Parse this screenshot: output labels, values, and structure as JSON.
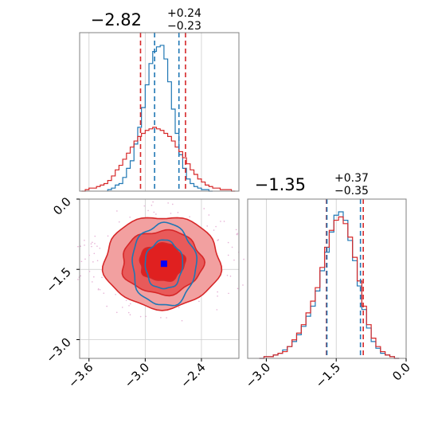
{
  "chart_data": [
    {
      "type": "histogram",
      "panel": "marginal-x",
      "title": {
        "median": "−2.82",
        "plus": "+0.24",
        "minus": "−0.23"
      },
      "xlim": [
        -3.7,
        -2.0
      ],
      "grid": true,
      "series": [
        {
          "name": "",
          "color": "#1f77b4",
          "x": [
            -3.38,
            -3.34,
            -3.3,
            -3.26,
            -3.22,
            -3.18,
            -3.14,
            -3.1,
            -3.06,
            -3.02,
            -2.98,
            -2.94,
            -2.9,
            -2.86,
            -2.82,
            -2.78,
            -2.74,
            -2.7,
            -2.66,
            -2.62,
            -2.58,
            -2.54,
            -2.5,
            -2.46,
            -2.42,
            -2.38,
            -2.34,
            -2.3
          ],
          "density": [
            0.01,
            0.02,
            0.04,
            0.05,
            0.09,
            0.15,
            0.2,
            0.31,
            0.42,
            0.55,
            0.7,
            0.84,
            0.92,
            0.95,
            0.96,
            0.87,
            0.72,
            0.54,
            0.38,
            0.24,
            0.15,
            0.08,
            0.05,
            0.03,
            0.02,
            0.01,
            0.01,
            0.0
          ]
        },
        {
          "name": "",
          "color": "#d62728",
          "x": [
            -3.66,
            -3.62,
            -3.58,
            -3.54,
            -3.5,
            -3.46,
            -3.42,
            -3.38,
            -3.34,
            -3.3,
            -3.26,
            -3.22,
            -3.18,
            -3.14,
            -3.1,
            -3.06,
            -3.02,
            -2.98,
            -2.94,
            -2.9,
            -2.86,
            -2.82,
            -2.78,
            -2.74,
            -2.7,
            -2.66,
            -2.62,
            -2.58,
            -2.54,
            -2.5,
            -2.46,
            -2.42,
            -2.38,
            -2.34,
            -2.3,
            -2.26,
            -2.22,
            -2.18,
            -2.14,
            -2.1,
            -2.06
          ],
          "density": [
            0.0,
            0.01,
            0.02,
            0.02,
            0.03,
            0.04,
            0.05,
            0.07,
            0.1,
            0.14,
            0.17,
            0.21,
            0.25,
            0.29,
            0.33,
            0.36,
            0.38,
            0.4,
            0.41,
            0.42,
            0.41,
            0.4,
            0.38,
            0.36,
            0.33,
            0.29,
            0.26,
            0.22,
            0.18,
            0.14,
            0.11,
            0.08,
            0.06,
            0.04,
            0.03,
            0.02,
            0.02,
            0.01,
            0.01,
            0.01,
            0.0
          ]
        }
      ],
      "quantile_lines": [
        {
          "x": -3.05,
          "color": "#d62728"
        },
        {
          "x": -2.9,
          "color": "#1f77b4"
        },
        {
          "x": -2.64,
          "color": "#1f77b4"
        },
        {
          "x": -2.57,
          "color": "#d62728"
        }
      ]
    },
    {
      "type": "histogram",
      "panel": "marginal-y",
      "title": {
        "median": "−1.35",
        "plus": "+0.37",
        "minus": "−0.35"
      },
      "xlim": [
        -3.4,
        0.0
      ],
      "xticks": [
        "−3.0",
        "−1.5",
        "0.0"
      ],
      "xtick_values": [
        -3.0,
        -1.5,
        0.0
      ],
      "grid": true,
      "series": [
        {
          "name": "",
          "color": "#1f77b4",
          "x": [
            -3.1,
            -3.0,
            -2.9,
            -2.8,
            -2.7,
            -2.6,
            -2.5,
            -2.4,
            -2.3,
            -2.2,
            -2.1,
            -2.0,
            -1.9,
            -1.8,
            -1.7,
            -1.6,
            -1.5,
            -1.4,
            -1.3,
            -1.2,
            -1.1,
            -1.0,
            -0.9,
            -0.8,
            -0.7,
            -0.6,
            -0.5,
            -0.4,
            -0.3,
            -0.2
          ],
          "density": [
            0.0,
            0.01,
            0.01,
            0.02,
            0.03,
            0.05,
            0.07,
            0.1,
            0.14,
            0.19,
            0.25,
            0.31,
            0.4,
            0.52,
            0.63,
            0.75,
            0.85,
            0.87,
            0.82,
            0.7,
            0.58,
            0.43,
            0.29,
            0.18,
            0.1,
            0.06,
            0.03,
            0.02,
            0.01,
            0.0
          ]
        },
        {
          "name": "",
          "color": "#d62728",
          "x": [
            -3.1,
            -3.0,
            -2.9,
            -2.8,
            -2.7,
            -2.6,
            -2.5,
            -2.4,
            -2.3,
            -2.2,
            -2.1,
            -2.0,
            -1.9,
            -1.8,
            -1.7,
            -1.6,
            -1.5,
            -1.4,
            -1.3,
            -1.2,
            -1.1,
            -1.0,
            -0.9,
            -0.8,
            -0.7,
            -0.6,
            -0.5,
            -0.4,
            -0.3,
            -0.2
          ],
          "density": [
            0.0,
            0.01,
            0.01,
            0.02,
            0.03,
            0.04,
            0.07,
            0.11,
            0.15,
            0.2,
            0.27,
            0.34,
            0.42,
            0.54,
            0.66,
            0.76,
            0.82,
            0.84,
            0.8,
            0.72,
            0.6,
            0.46,
            0.31,
            0.2,
            0.12,
            0.07,
            0.04,
            0.02,
            0.01,
            0.0
          ]
        }
      ],
      "quantile_lines": [
        {
          "x": -1.71,
          "color": "#d62728"
        },
        {
          "x": -1.7,
          "color": "#1f77b4"
        },
        {
          "x": -0.98,
          "color": "#1f77b4"
        },
        {
          "x": -0.92,
          "color": "#d62728"
        }
      ]
    },
    {
      "type": "contour",
      "panel": "joint",
      "xlim": [
        -3.7,
        -2.0
      ],
      "ylim": [
        -3.4,
        0.0
      ],
      "xticks": [
        "−3.6",
        "−3.0",
        "−2.4"
      ],
      "xtick_values": [
        -3.6,
        -3.0,
        -2.4
      ],
      "yticks": [
        "0.0",
        "−1.5",
        "−3.0"
      ],
      "ytick_values": [
        0.0,
        -1.5,
        -3.0
      ],
      "grid": true,
      "series": [
        {
          "name": "",
          "color": "#d62728",
          "center": [
            -2.82,
            -1.35
          ],
          "levels": [
            {
              "rx": 0.62,
              "ry": 0.98,
              "fill": "#f2a0a0"
            },
            {
              "rx": 0.43,
              "ry": 0.68,
              "fill": "#e85a5a"
            },
            {
              "rx": 0.24,
              "ry": 0.4,
              "fill": "#e02020"
            }
          ]
        },
        {
          "name": "",
          "color": "#1f77b4",
          "center": [
            -2.8,
            -1.4
          ],
          "levels": [
            {
              "rx": 0.34,
              "ry": 0.88
            },
            {
              "rx": 0.2,
              "ry": 0.52
            }
          ]
        }
      ],
      "peak_marker": {
        "x": -2.8,
        "y": -1.38,
        "color": "#0000ff"
      }
    }
  ]
}
